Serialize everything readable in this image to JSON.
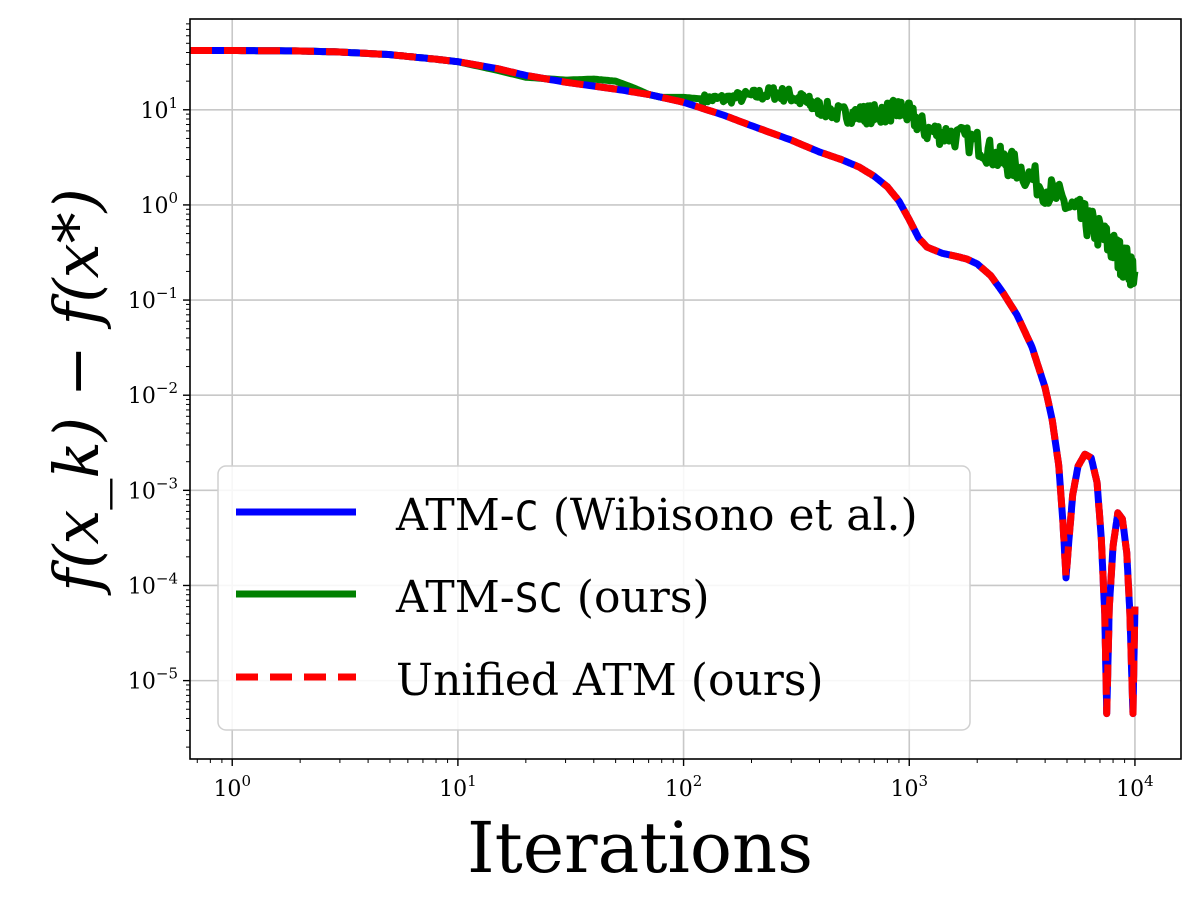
{
  "chart_data": {
    "type": "line",
    "title": "",
    "xlabel": "Iterations",
    "ylabel": "f(x_k) − f(x*)",
    "xscale": "log",
    "yscale": "log",
    "xlim": [
      0.65,
      16000
    ],
    "ylim": [
      1.5e-06,
      90
    ],
    "x_ticks": [
      {
        "value": 1,
        "base": "10",
        "exp": "0"
      },
      {
        "value": 10,
        "base": "10",
        "exp": "1"
      },
      {
        "value": 100,
        "base": "10",
        "exp": "2"
      },
      {
        "value": 1000,
        "base": "10",
        "exp": "3"
      },
      {
        "value": 10000,
        "base": "10",
        "exp": "4"
      }
    ],
    "y_ticks": [
      {
        "value": 10,
        "base": "10",
        "exp": "1"
      },
      {
        "value": 1,
        "base": "10",
        "exp": "0"
      },
      {
        "value": 0.1,
        "base": "10",
        "exp": "−1"
      },
      {
        "value": 0.01,
        "base": "10",
        "exp": "−2"
      },
      {
        "value": 0.001,
        "base": "10",
        "exp": "−3"
      },
      {
        "value": 0.0001,
        "base": "10",
        "exp": "−4"
      },
      {
        "value": 1e-05,
        "base": "10",
        "exp": "−5"
      }
    ],
    "grid": true,
    "legend_position": "lower-left",
    "series": [
      {
        "name": "ATM-C (Wibisono et al.)",
        "legend_prefix": "ATM-",
        "legend_code": "C",
        "legend_suffix": " (Wibisono et al.)",
        "color": "#0000ff",
        "style": "solid",
        "points": [
          [
            0.65,
            42
          ],
          [
            1,
            42
          ],
          [
            2,
            41.5
          ],
          [
            3,
            40.5
          ],
          [
            5,
            38
          ],
          [
            8,
            34
          ],
          [
            10,
            32
          ],
          [
            15,
            27
          ],
          [
            20,
            23
          ],
          [
            30,
            19.5
          ],
          [
            50,
            16.5
          ],
          [
            70,
            14.5
          ],
          [
            100,
            12
          ],
          [
            150,
            8.8
          ],
          [
            200,
            6.8
          ],
          [
            300,
            4.8
          ],
          [
            400,
            3.6
          ],
          [
            500,
            3.0
          ],
          [
            600,
            2.5
          ],
          [
            700,
            2.0
          ],
          [
            800,
            1.55
          ],
          [
            900,
            1.1
          ],
          [
            1000,
            0.7
          ],
          [
            1100,
            0.45
          ],
          [
            1200,
            0.36
          ],
          [
            1400,
            0.31
          ],
          [
            1600,
            0.29
          ],
          [
            1800,
            0.27
          ],
          [
            2000,
            0.24
          ],
          [
            2300,
            0.18
          ],
          [
            2600,
            0.12
          ],
          [
            3000,
            0.07
          ],
          [
            3500,
            0.032
          ],
          [
            4000,
            0.012
          ],
          [
            4300,
            0.0055
          ],
          [
            4600,
            0.0018
          ],
          [
            4800,
            0.00045
          ],
          [
            4950,
            0.00012
          ],
          [
            5100,
            0.0003
          ],
          [
            5300,
            0.0009
          ],
          [
            5600,
            0.0018
          ],
          [
            6000,
            0.0024
          ],
          [
            6400,
            0.0022
          ],
          [
            6800,
            0.0012
          ],
          [
            7100,
            0.0003
          ],
          [
            7350,
            5e-05
          ],
          [
            7500,
            4.5e-06
          ],
          [
            7700,
            6e-05
          ],
          [
            8000,
            0.00026
          ],
          [
            8400,
            0.00058
          ],
          [
            8800,
            0.0005
          ],
          [
            9200,
            0.00022
          ],
          [
            9500,
            5e-05
          ],
          [
            9800,
            4.5e-06
          ],
          [
            10000,
            6e-05
          ]
        ]
      },
      {
        "name": "ATM-SC (ours)",
        "legend_prefix": "ATM-",
        "legend_code": "SC",
        "legend_suffix": " (ours)",
        "color": "#008000",
        "style": "solid",
        "noisy_from": 120,
        "points": [
          [
            0.65,
            42
          ],
          [
            1,
            42
          ],
          [
            2,
            41.5
          ],
          [
            3,
            40.5
          ],
          [
            5,
            38
          ],
          [
            8,
            34
          ],
          [
            10,
            32
          ],
          [
            15,
            26
          ],
          [
            20,
            22
          ],
          [
            30,
            20.5
          ],
          [
            40,
            21
          ],
          [
            50,
            20
          ],
          [
            60,
            17
          ],
          [
            70,
            14.5
          ],
          [
            80,
            13.5
          ],
          [
            100,
            13.5
          ],
          [
            120,
            13
          ],
          [
            150,
            13
          ],
          [
            200,
            14
          ],
          [
            250,
            15
          ],
          [
            300,
            14
          ],
          [
            350,
            12
          ],
          [
            400,
            10.5
          ],
          [
            500,
            9
          ],
          [
            600,
            9
          ],
          [
            700,
            9
          ],
          [
            800,
            9.5
          ],
          [
            900,
            10
          ],
          [
            1000,
            9
          ],
          [
            1200,
            6
          ],
          [
            1500,
            5.5
          ],
          [
            2000,
            4.5
          ],
          [
            2500,
            3
          ],
          [
            3000,
            2.5
          ],
          [
            4000,
            1.5
          ],
          [
            5000,
            1.0
          ],
          [
            6000,
            0.7
          ],
          [
            7000,
            0.5
          ],
          [
            8000,
            0.35
          ],
          [
            9000,
            0.25
          ],
          [
            10000,
            0.2
          ]
        ]
      },
      {
        "name": "Unified ATM (ours)",
        "color": "#ff0000",
        "style": "dashed",
        "points": [
          [
            0.65,
            42
          ],
          [
            1,
            42
          ],
          [
            2,
            41.5
          ],
          [
            3,
            40.5
          ],
          [
            5,
            38
          ],
          [
            8,
            34
          ],
          [
            10,
            32
          ],
          [
            15,
            27
          ],
          [
            20,
            23
          ],
          [
            30,
            19.5
          ],
          [
            50,
            16.5
          ],
          [
            70,
            14.5
          ],
          [
            100,
            12
          ],
          [
            150,
            8.8
          ],
          [
            200,
            6.8
          ],
          [
            300,
            4.8
          ],
          [
            400,
            3.6
          ],
          [
            500,
            3.0
          ],
          [
            600,
            2.5
          ],
          [
            700,
            2.0
          ],
          [
            800,
            1.55
          ],
          [
            900,
            1.1
          ],
          [
            1000,
            0.7
          ],
          [
            1100,
            0.45
          ],
          [
            1200,
            0.36
          ],
          [
            1400,
            0.31
          ],
          [
            1600,
            0.29
          ],
          [
            1800,
            0.27
          ],
          [
            2000,
            0.24
          ],
          [
            2300,
            0.18
          ],
          [
            2600,
            0.12
          ],
          [
            3000,
            0.07
          ],
          [
            3500,
            0.032
          ],
          [
            4000,
            0.012
          ],
          [
            4300,
            0.0055
          ],
          [
            4600,
            0.0018
          ],
          [
            4800,
            0.00045
          ],
          [
            4950,
            0.00012
          ],
          [
            5100,
            0.0003
          ],
          [
            5300,
            0.0009
          ],
          [
            5600,
            0.0018
          ],
          [
            6000,
            0.0024
          ],
          [
            6400,
            0.0022
          ],
          [
            6800,
            0.0012
          ],
          [
            7100,
            0.0003
          ],
          [
            7350,
            5e-05
          ],
          [
            7500,
            4.5e-06
          ],
          [
            7700,
            6e-05
          ],
          [
            8000,
            0.00026
          ],
          [
            8400,
            0.00058
          ],
          [
            8800,
            0.0005
          ],
          [
            9200,
            0.00022
          ],
          [
            9500,
            5e-05
          ],
          [
            9800,
            4.5e-06
          ],
          [
            10000,
            6e-05
          ]
        ]
      }
    ]
  }
}
